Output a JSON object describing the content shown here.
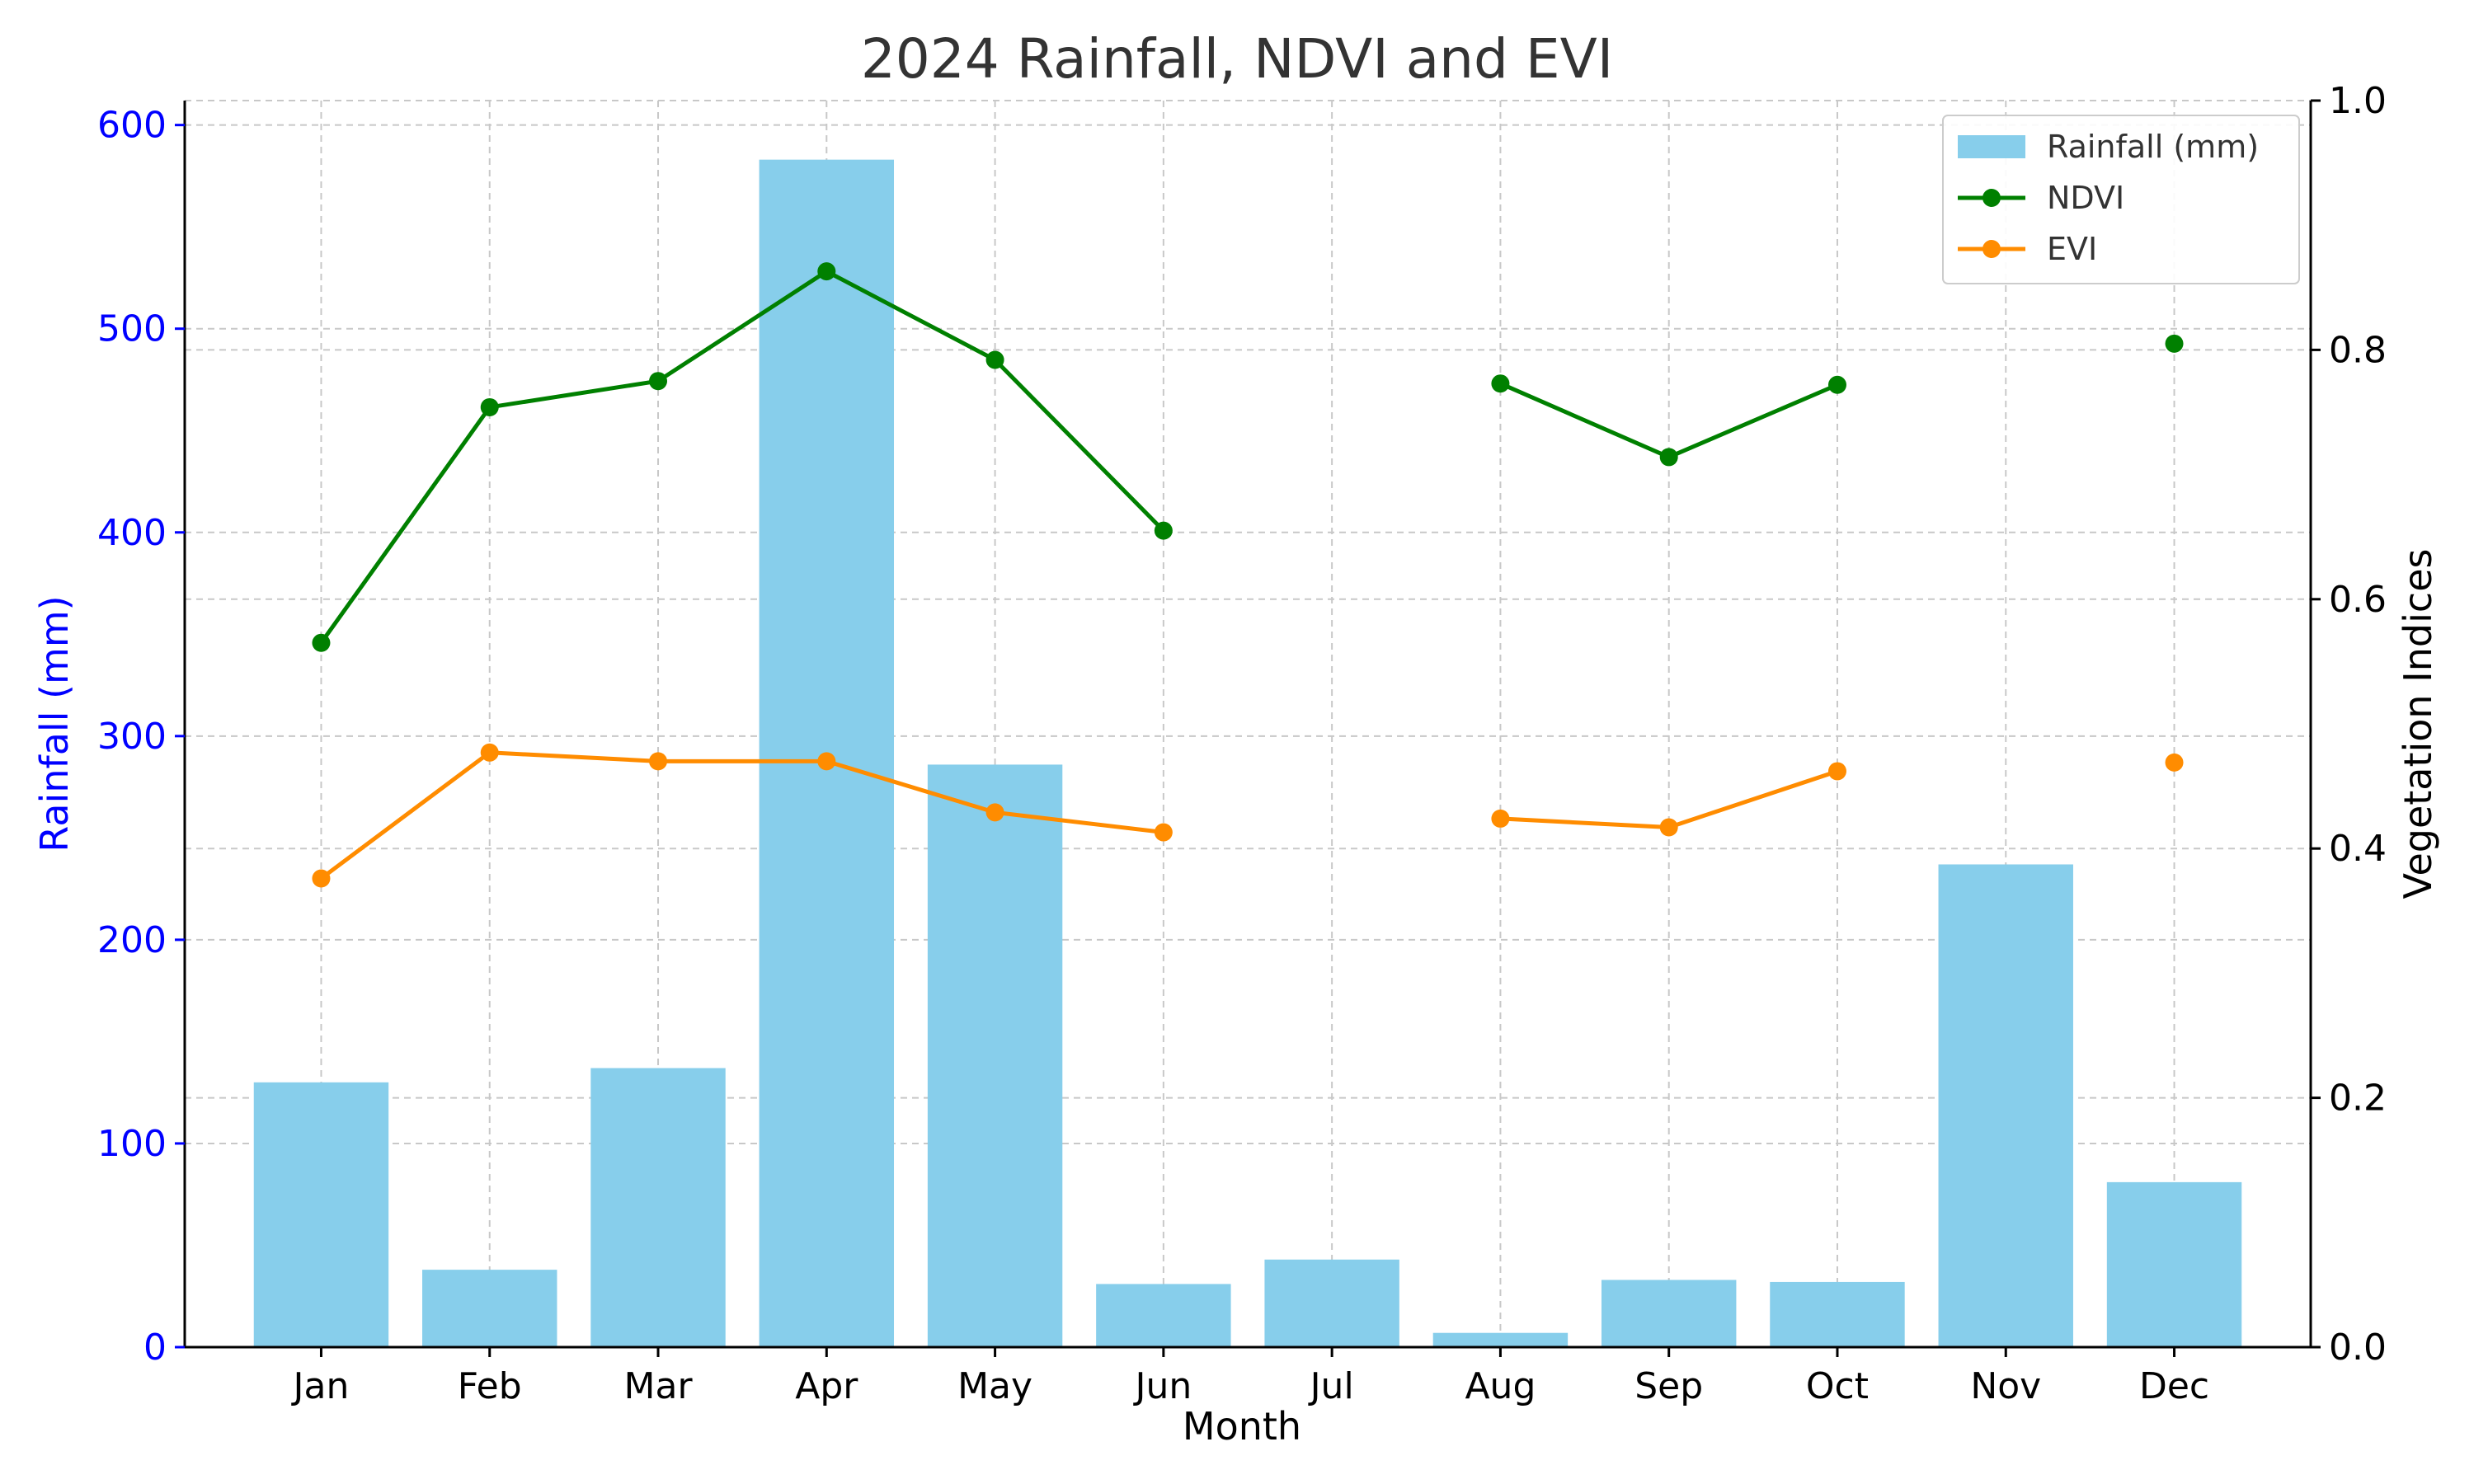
{
  "chart_data": {
    "type": "bar",
    "title": "2024 Rainfall, NDVI and EVI",
    "xlabel": "Month",
    "ylabel_left": "Rainfall (mm)",
    "ylabel_right": "Vegetation Indices",
    "categories": [
      "Jan",
      "Feb",
      "Mar",
      "Apr",
      "May",
      "Jun",
      "Jul",
      "Aug",
      "Sep",
      "Oct",
      "Nov",
      "Dec"
    ],
    "ylim_left": [
      0,
      612
    ],
    "ylim_right": [
      0,
      1.0
    ],
    "yticks_left": [
      "0",
      "100",
      "200",
      "300",
      "400",
      "500",
      "600"
    ],
    "yticks_right": [
      "0.0",
      "0.2",
      "0.4",
      "0.6",
      "0.8",
      "1.0"
    ],
    "grid": true,
    "legend_position": "top-right",
    "series": [
      {
        "name": "Rainfall (mm)",
        "type": "bar",
        "axis": "left",
        "color": "#87ceeb",
        "values": [
          130,
          38,
          137,
          583,
          286,
          31,
          43,
          7,
          33,
          32,
          237,
          81
        ]
      },
      {
        "name": "NDVI",
        "type": "line",
        "axis": "right",
        "color": "#008000",
        "values": [
          0.565,
          0.754,
          0.775,
          0.863,
          0.792,
          0.655,
          null,
          0.773,
          0.714,
          0.772,
          null,
          0.805
        ]
      },
      {
        "name": "EVI",
        "type": "line",
        "axis": "right",
        "color": "#ff8c00",
        "values": [
          0.376,
          0.477,
          0.47,
          0.47,
          0.429,
          0.413,
          null,
          0.424,
          0.417,
          0.462,
          null,
          0.469
        ]
      }
    ],
    "left_axis_color": "#0000ff",
    "right_axis_color": "#000000"
  }
}
